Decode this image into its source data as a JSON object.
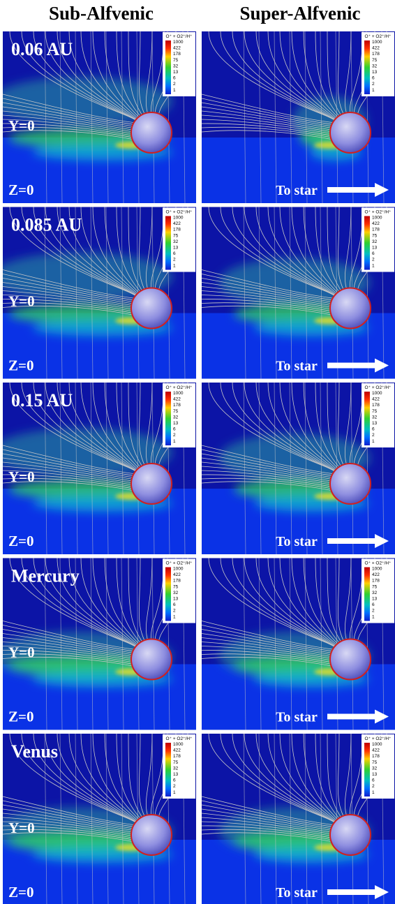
{
  "columns": [
    "Sub-Alfvenic",
    "Super-Alfvenic"
  ],
  "rows": [
    {
      "label": "0.06 AU"
    },
    {
      "label": "0.085 AU"
    },
    {
      "label": "0.15 AU"
    },
    {
      "label": "Mercury"
    },
    {
      "label": "Venus"
    }
  ],
  "plane_labels": {
    "y": "Y=0",
    "z": "Z=0"
  },
  "to_star": "To star",
  "colorbar": {
    "title": "O⁺ + O2⁺/H⁺",
    "ticks": [
      1000,
      422,
      178,
      75,
      32,
      13,
      6,
      2,
      1
    ]
  }
}
